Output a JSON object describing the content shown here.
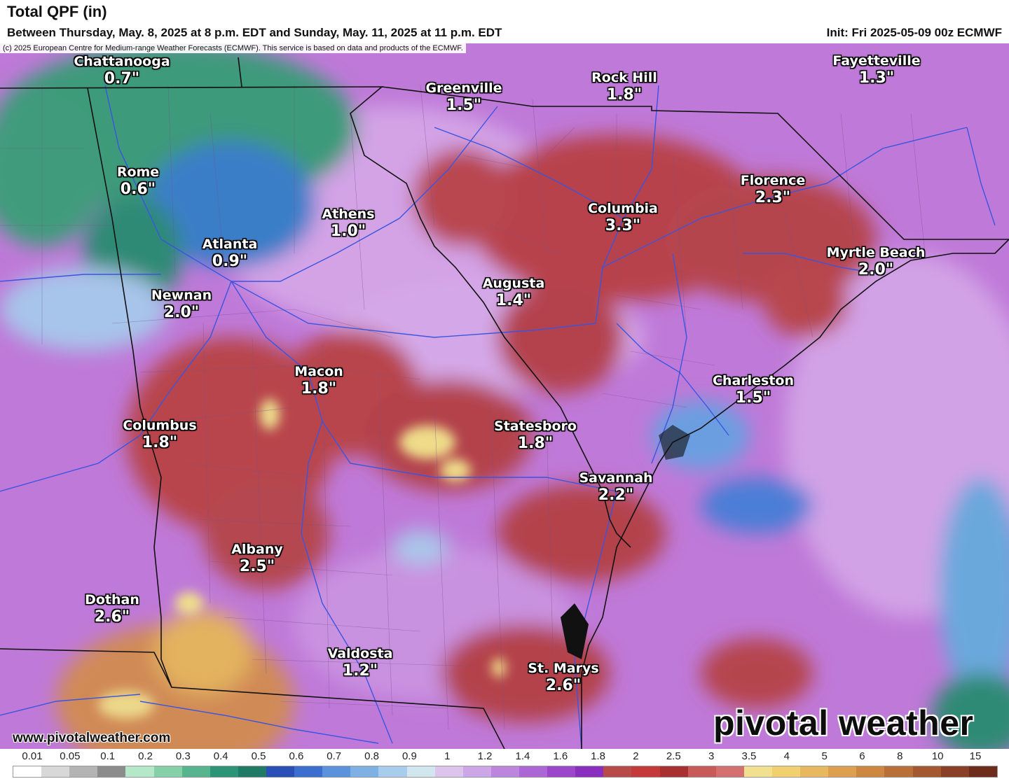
{
  "header": {
    "title": "Total QPF (in)",
    "subtitle": "Between Thursday, May. 8, 2025 at 8 p.m. EDT and Sunday, May. 11, 2025 at 11 p.m. EDT",
    "init": "Init: Fri 2025-05-09 00z ECMWF"
  },
  "copyright": "(c) 2025 European Centre for Medium-range Weather Forecasts (ECMWF). This service is based on data and products of the ECMWF.",
  "cities": [
    {
      "name": "Chattanooga",
      "value": "0.7\""
    },
    {
      "name": "Rome",
      "value": "0.6\""
    },
    {
      "name": "Atlanta",
      "value": "0.9\""
    },
    {
      "name": "Athens",
      "value": "1.0\""
    },
    {
      "name": "Greenville",
      "value": "1.5\""
    },
    {
      "name": "Rock Hill",
      "value": "1.8\""
    },
    {
      "name": "Fayetteville",
      "value": "1.3\""
    },
    {
      "name": "Florence",
      "value": "2.3\""
    },
    {
      "name": "Columbia",
      "value": "3.3\""
    },
    {
      "name": "Myrtle Beach",
      "value": "2.0\""
    },
    {
      "name": "Augusta",
      "value": "1.4\""
    },
    {
      "name": "Newnan",
      "value": "2.0\""
    },
    {
      "name": "Macon",
      "value": "1.8\""
    },
    {
      "name": "Charleston",
      "value": "1.5\""
    },
    {
      "name": "Columbus",
      "value": "1.8\""
    },
    {
      "name": "Statesboro",
      "value": "1.8\""
    },
    {
      "name": "Savannah",
      "value": "2.2\""
    },
    {
      "name": "Albany",
      "value": "2.5\""
    },
    {
      "name": "Dothan",
      "value": "2.6\""
    },
    {
      "name": "Valdosta",
      "value": "1.2\""
    },
    {
      "name": "St. Marys",
      "value": "2.6\""
    }
  ],
  "watermark": {
    "url": "www.pivotalweather.com",
    "brand": "pivotal weather"
  },
  "legend": {
    "labels": [
      "0.01",
      "0.05",
      "0.1",
      "0.2",
      "0.3",
      "0.4",
      "0.5",
      "0.6",
      "0.7",
      "0.8",
      "0.9",
      "1",
      "1.2",
      "1.4",
      "1.6",
      "1.8",
      "2",
      "2.5",
      "3",
      "3.5",
      "4",
      "5",
      "6",
      "8",
      "10",
      "15"
    ],
    "colors": [
      "#ffffff",
      "#d8d8d8",
      "#b4b4b4",
      "#8c8c8c",
      "#b4e8c8",
      "#86d0a8",
      "#56b48e",
      "#2e9478",
      "#1f7a66",
      "#2a50b8",
      "#3c6ed0",
      "#5a92dc",
      "#7fb0e4",
      "#a8cceb",
      "#d2e6f0",
      "#dcc4ec",
      "#cca6e6",
      "#bc86de",
      "#ad66d6",
      "#9c46cc",
      "#8a2ec0",
      "#b84a4a",
      "#c43a3a",
      "#a83030",
      "#c85a5a",
      "#d47070",
      "#f0e090",
      "#f2d070",
      "#e8b860",
      "#dca050",
      "#cc8840",
      "#b87038",
      "#a45830",
      "#8a4026",
      "#6e2c1c"
    ]
  }
}
